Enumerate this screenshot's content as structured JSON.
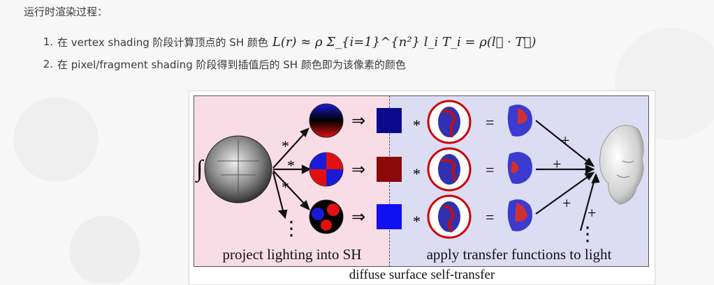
{
  "intro_text": "运行时渲染过程：",
  "steps": [
    {
      "number": "1.",
      "text": "在 vertex shading 阶段计算顶点的 SH 颜色",
      "formula": "L(r) ≈ ρ Σ_{i=1}^{n²} l_i T_i = ρ(l⃗ · T⃗)"
    },
    {
      "number": "2.",
      "text": "在 pixel/fragment shading 阶段得到插值后的 SH 颜色即为该像素的颜色"
    }
  ],
  "figure": {
    "left_label": "project lighting into SH",
    "right_label": "apply transfer functions to light",
    "caption": "diffuse surface self-transfer",
    "operators": {
      "implies": "⇒",
      "multiply": "*",
      "equals": "=",
      "plus": "+",
      "integral": "∫",
      "ellipsis": "⋮"
    },
    "rows": [
      {
        "coefficient_color": "#0a0a8a"
      },
      {
        "coefficient_color": "#8a0a0a"
      },
      {
        "coefficient_color": "#1010f0"
      }
    ]
  }
}
